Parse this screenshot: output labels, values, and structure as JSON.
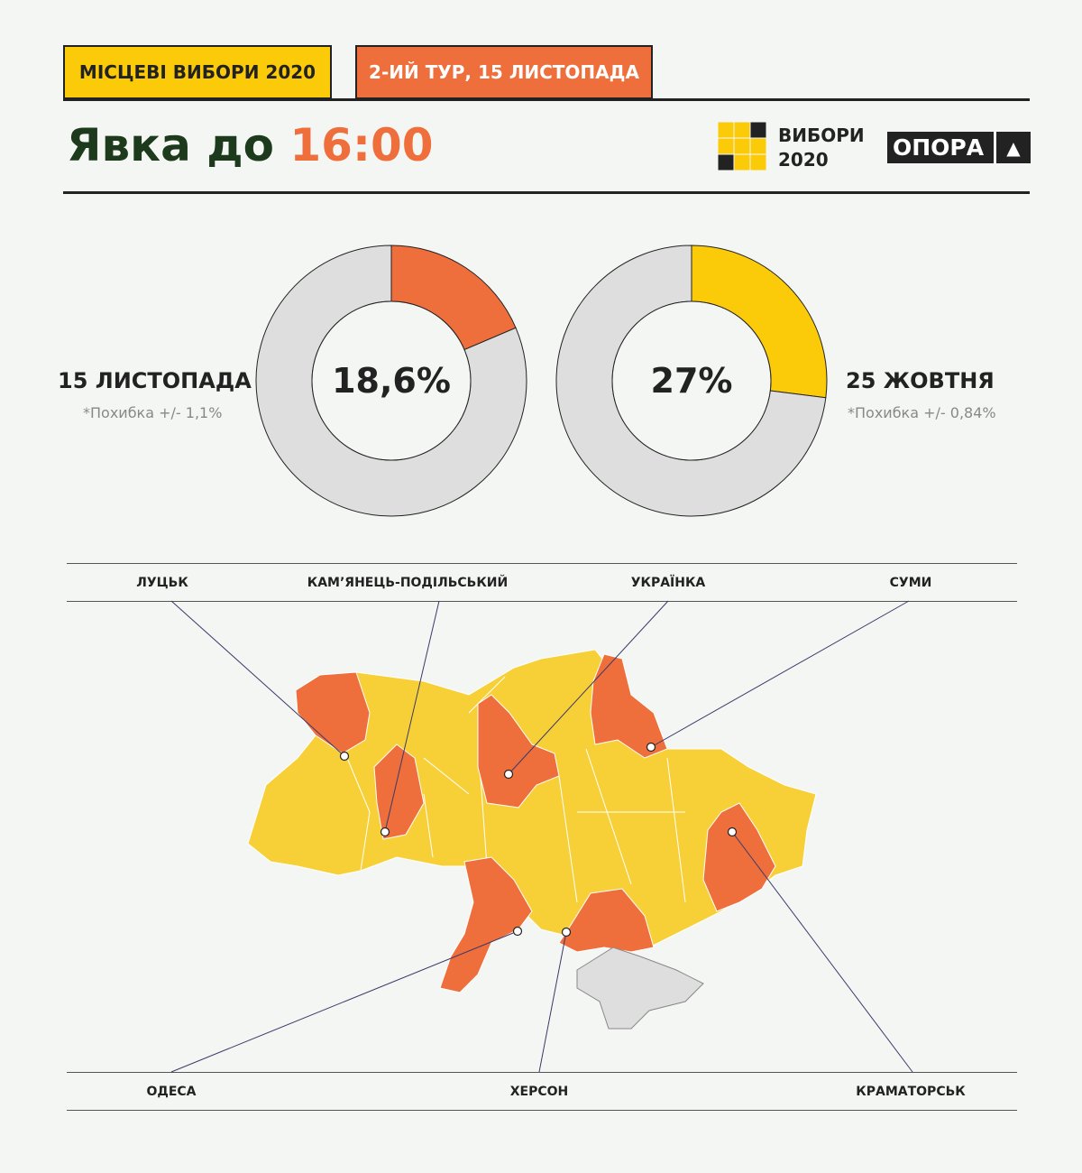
{
  "header": {
    "tag1": "МІСЦЕВІ ВИБОРИ 2020",
    "tag2": "2-ИЙ ТУР, 15 ЛИСТОПАДА",
    "title_main": "Явка до",
    "title_time": "16:00",
    "logo1_line1": "ВИБОРИ",
    "logo1_line2": "2020",
    "logo2": "ОПОРА"
  },
  "colors": {
    "yellow": "#fbcb0a",
    "orange": "#ee6e3c",
    "dark_green": "#1d3a1d",
    "grey": "#dedede",
    "map_yellow": "#f7d038"
  },
  "chart_data": [
    {
      "type": "pie",
      "variant": "donut",
      "label": "15 ЛИСТОПАДА",
      "note": "*Похибка +/- 1,1%",
      "center_text": "18,6%",
      "values": [
        18.6,
        81.4
      ],
      "colors": [
        "#ee6e3c",
        "#dedede"
      ]
    },
    {
      "type": "pie",
      "variant": "donut",
      "label": "25 ЖОВТНЯ",
      "note": "*Похибка +/- 0,84%",
      "center_text": "27%",
      "values": [
        27,
        73
      ],
      "colors": [
        "#fbcb0a",
        "#dedede"
      ]
    }
  ],
  "map": {
    "cities_top": [
      "ЛУЦЬК",
      "КАМ’ЯНЕЦЬ-ПОДІЛЬСЬКИЙ",
      "УКРАЇНКА",
      "СУМИ"
    ],
    "cities_bottom": [
      "ОДЕСА",
      "ХЕРСОН",
      "КРАМАТОРСЬК"
    ]
  }
}
